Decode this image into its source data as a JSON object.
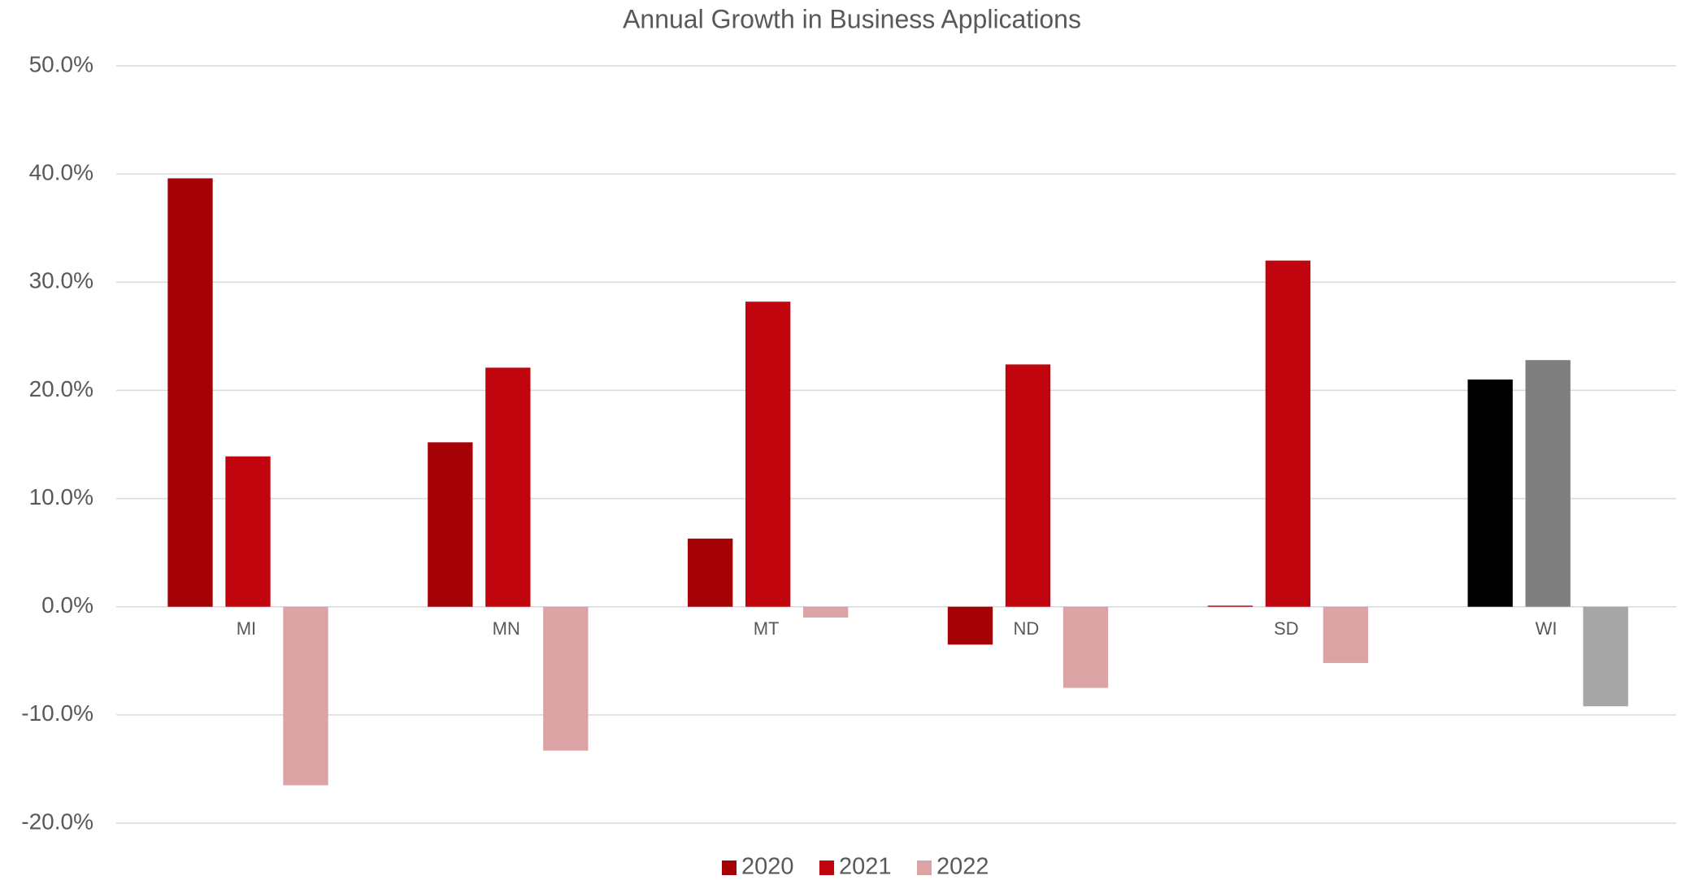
{
  "chart_data": {
    "type": "bar",
    "title": "Annual Growth in Business Applications",
    "categories": [
      "MI",
      "MN",
      "MT",
      "ND",
      "SD",
      "WI"
    ],
    "series": [
      {
        "name": "2020",
        "color": "#a50208",
        "colors": [
          "#a50208",
          "#a50208",
          "#a50208",
          "#a50208",
          "#a50208",
          "#000000"
        ],
        "values": [
          39.6,
          15.2,
          6.3,
          -3.5,
          0.1,
          21.0
        ]
      },
      {
        "name": "2021",
        "color": "#c1050f",
        "colors": [
          "#c1050f",
          "#c1050f",
          "#c1050f",
          "#c1050f",
          "#c1050f",
          "#7f7f7f"
        ],
        "values": [
          13.9,
          22.1,
          28.2,
          22.4,
          32.0,
          22.8
        ]
      },
      {
        "name": "2022",
        "color": "#dca3a5",
        "colors": [
          "#dca3a5",
          "#dca3a5",
          "#dca3a5",
          "#dca3a5",
          "#dca3a5",
          "#a6a6a6"
        ],
        "values": [
          -16.5,
          -13.3,
          -1.0,
          -7.5,
          -5.2,
          -9.2
        ]
      }
    ],
    "ylim": [
      -20,
      50
    ],
    "yticks": [
      {
        "value": -20,
        "label": "-20.0%"
      },
      {
        "value": -10,
        "label": "-10.0%"
      },
      {
        "value": 0,
        "label": "0.0%"
      },
      {
        "value": 10,
        "label": "10.0%"
      },
      {
        "value": 20,
        "label": "20.0%"
      },
      {
        "value": 30,
        "label": "30.0%"
      },
      {
        "value": 40,
        "label": "40.0%"
      },
      {
        "value": 50,
        "label": "50.0%"
      }
    ],
    "grid": true,
    "legend": "bottom"
  }
}
